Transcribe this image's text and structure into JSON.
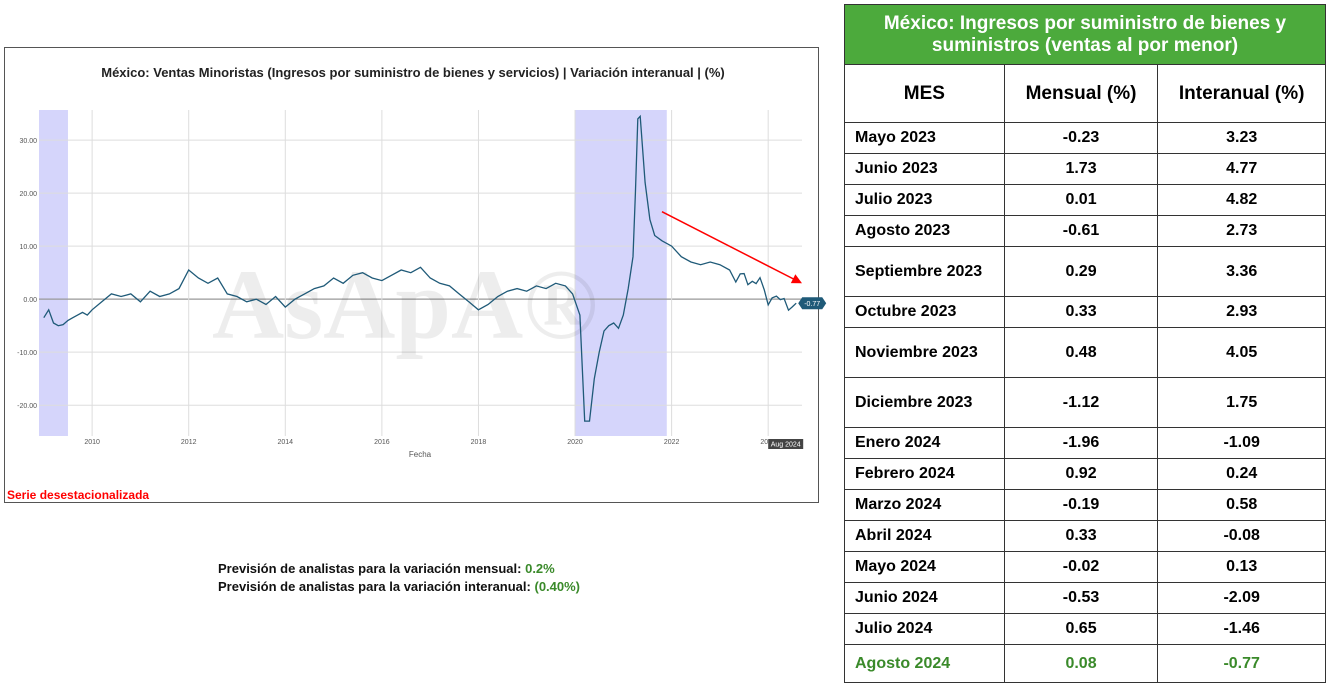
{
  "chart_data": {
    "type": "line",
    "title": "México: Ventas Minoristas (Ingresos por suministro de bienes y servicios) | Variación interanual | (%)",
    "xlabel": "Fecha",
    "ylabel": "",
    "x_tick_labels": [
      "2010",
      "2012",
      "2014",
      "2016",
      "2018",
      "2020",
      "2022",
      "2024"
    ],
    "y_tick_labels": [
      "30.00",
      "20.00",
      "10.00",
      "0.00",
      "-10.00",
      "-20.00"
    ],
    "xlim": [
      2008.9,
      2024.7
    ],
    "ylim": [
      -26,
      37
    ],
    "grid": true,
    "series_color": "#1f5a78",
    "recession_color": "#d5d5fb",
    "recession_bands": [
      [
        2008.9,
        2009.5
      ],
      [
        2020.0,
        2021.9
      ]
    ],
    "trend_arrow_color": "#ff0000",
    "trend_arrow": {
      "from": [
        2021.8,
        16.5
      ],
      "to": [
        2024.7,
        3.0
      ]
    },
    "last_label": "-0.77",
    "last_date_label": "Aug 2024",
    "watermark": "AsApA®",
    "x": [
      2009.0,
      2009.1,
      2009.2,
      2009.3,
      2009.4,
      2009.5,
      2009.6,
      2009.7,
      2009.8,
      2009.9,
      2010.0,
      2010.2,
      2010.4,
      2010.6,
      2010.8,
      2011.0,
      2011.2,
      2011.4,
      2011.6,
      2011.8,
      2012.0,
      2012.2,
      2012.4,
      2012.6,
      2012.8,
      2013.0,
      2013.2,
      2013.4,
      2013.6,
      2013.8,
      2014.0,
      2014.2,
      2014.4,
      2014.6,
      2014.8,
      2015.0,
      2015.2,
      2015.4,
      2015.6,
      2015.8,
      2016.0,
      2016.2,
      2016.4,
      2016.6,
      2016.8,
      2017.0,
      2017.2,
      2017.4,
      2017.6,
      2017.8,
      2018.0,
      2018.2,
      2018.4,
      2018.6,
      2018.8,
      2019.0,
      2019.2,
      2019.4,
      2019.6,
      2019.8,
      2019.95,
      2020.1,
      2020.2,
      2020.3,
      2020.4,
      2020.5,
      2020.6,
      2020.7,
      2020.8,
      2020.9,
      2021.0,
      2021.1,
      2021.2,
      2021.25,
      2021.3,
      2021.35,
      2021.45,
      2021.55,
      2021.65,
      2021.8,
      2022.0,
      2022.2,
      2022.4,
      2022.6,
      2022.8,
      2023.0,
      2023.2,
      2023.33,
      2023.42,
      2023.5,
      2023.58,
      2023.67,
      2023.75,
      2023.83,
      2023.92,
      2024.0,
      2024.08,
      2024.17,
      2024.25,
      2024.33,
      2024.42,
      2024.5,
      2024.58
    ],
    "y": [
      -3.5,
      -2.0,
      -4.5,
      -5.0,
      -4.8,
      -4.0,
      -3.5,
      -3.0,
      -2.5,
      -3.0,
      -2.0,
      -0.5,
      1.0,
      0.5,
      1.0,
      -0.5,
      1.5,
      0.5,
      1.0,
      2.0,
      5.5,
      4.0,
      3.0,
      4.0,
      1.0,
      0.5,
      -0.5,
      0.0,
      -1.0,
      0.5,
      -1.5,
      0.0,
      1.0,
      2.0,
      2.5,
      4.0,
      3.0,
      4.5,
      5.0,
      4.0,
      3.5,
      4.5,
      5.5,
      5.0,
      6.0,
      4.0,
      3.0,
      2.5,
      1.0,
      -0.5,
      -2.0,
      -1.0,
      0.5,
      1.5,
      2.0,
      1.5,
      2.5,
      2.0,
      3.0,
      2.5,
      1.0,
      -3.0,
      -23.0,
      -23.0,
      -15.0,
      -10.0,
      -6.0,
      -5.0,
      -4.5,
      -5.5,
      -3.0,
      2.0,
      8.0,
      20.0,
      34.0,
      34.5,
      22.0,
      15.0,
      12.0,
      11.0,
      10.0,
      8.0,
      7.0,
      6.5,
      7.0,
      6.5,
      5.5,
      3.23,
      4.77,
      4.82,
      2.73,
      3.36,
      2.93,
      4.05,
      1.75,
      -1.09,
      0.24,
      0.58,
      -0.08,
      0.13,
      -2.09,
      -1.46,
      -0.77
    ]
  },
  "table": {
    "title": "México: Ingresos por suministro de bienes y suministros (ventas al por menor)",
    "headers": [
      "MES",
      "Mensual (%)",
      "Interanual (%)"
    ],
    "rows": [
      {
        "mes": "Mayo 2023",
        "mensual": "-0.23",
        "interanual": "3.23"
      },
      {
        "mes": "Junio 2023",
        "mensual": "1.73",
        "interanual": "4.77"
      },
      {
        "mes": "Julio 2023",
        "mensual": "0.01",
        "interanual": "4.82"
      },
      {
        "mes": "Agosto 2023",
        "mensual": "-0.61",
        "interanual": "2.73"
      },
      {
        "mes": "Septiembre 2023",
        "mensual": "0.29",
        "interanual": "3.36"
      },
      {
        "mes": "Octubre 2023",
        "mensual": "0.33",
        "interanual": "2.93"
      },
      {
        "mes": "Noviembre 2023",
        "mensual": "0.48",
        "interanual": "4.05"
      },
      {
        "mes": "Diciembre 2023",
        "mensual": "-1.12",
        "interanual": "1.75"
      },
      {
        "mes": "Enero 2024",
        "mensual": "-1.96",
        "interanual": "-1.09"
      },
      {
        "mes": "Febrero 2024",
        "mensual": "0.92",
        "interanual": "0.24"
      },
      {
        "mes": "Marzo 2024",
        "mensual": "-0.19",
        "interanual": "0.58"
      },
      {
        "mes": "Abril 2024",
        "mensual": "0.33",
        "interanual": "-0.08"
      },
      {
        "mes": "Mayo 2024",
        "mensual": "-0.02",
        "interanual": "0.13"
      },
      {
        "mes": "Junio 2024",
        "mensual": "-0.53",
        "interanual": "-2.09"
      },
      {
        "mes": "Julio 2024",
        "mensual": "0.65",
        "interanual": "-1.46"
      },
      {
        "mes": "Agosto 2024",
        "mensual": "0.08",
        "interanual": "-0.77"
      }
    ],
    "header_color": "#4caa3c",
    "highlight_color": "#3a8a2a"
  },
  "note": "Serie desestacionalizada",
  "forecast": {
    "monthly_label": "Previsión de analistas para la variación mensual:",
    "monthly_value": "0.2%",
    "annual_label": "Previsión de analistas para la variación interanual:",
    "annual_value": "(0.40%)"
  }
}
